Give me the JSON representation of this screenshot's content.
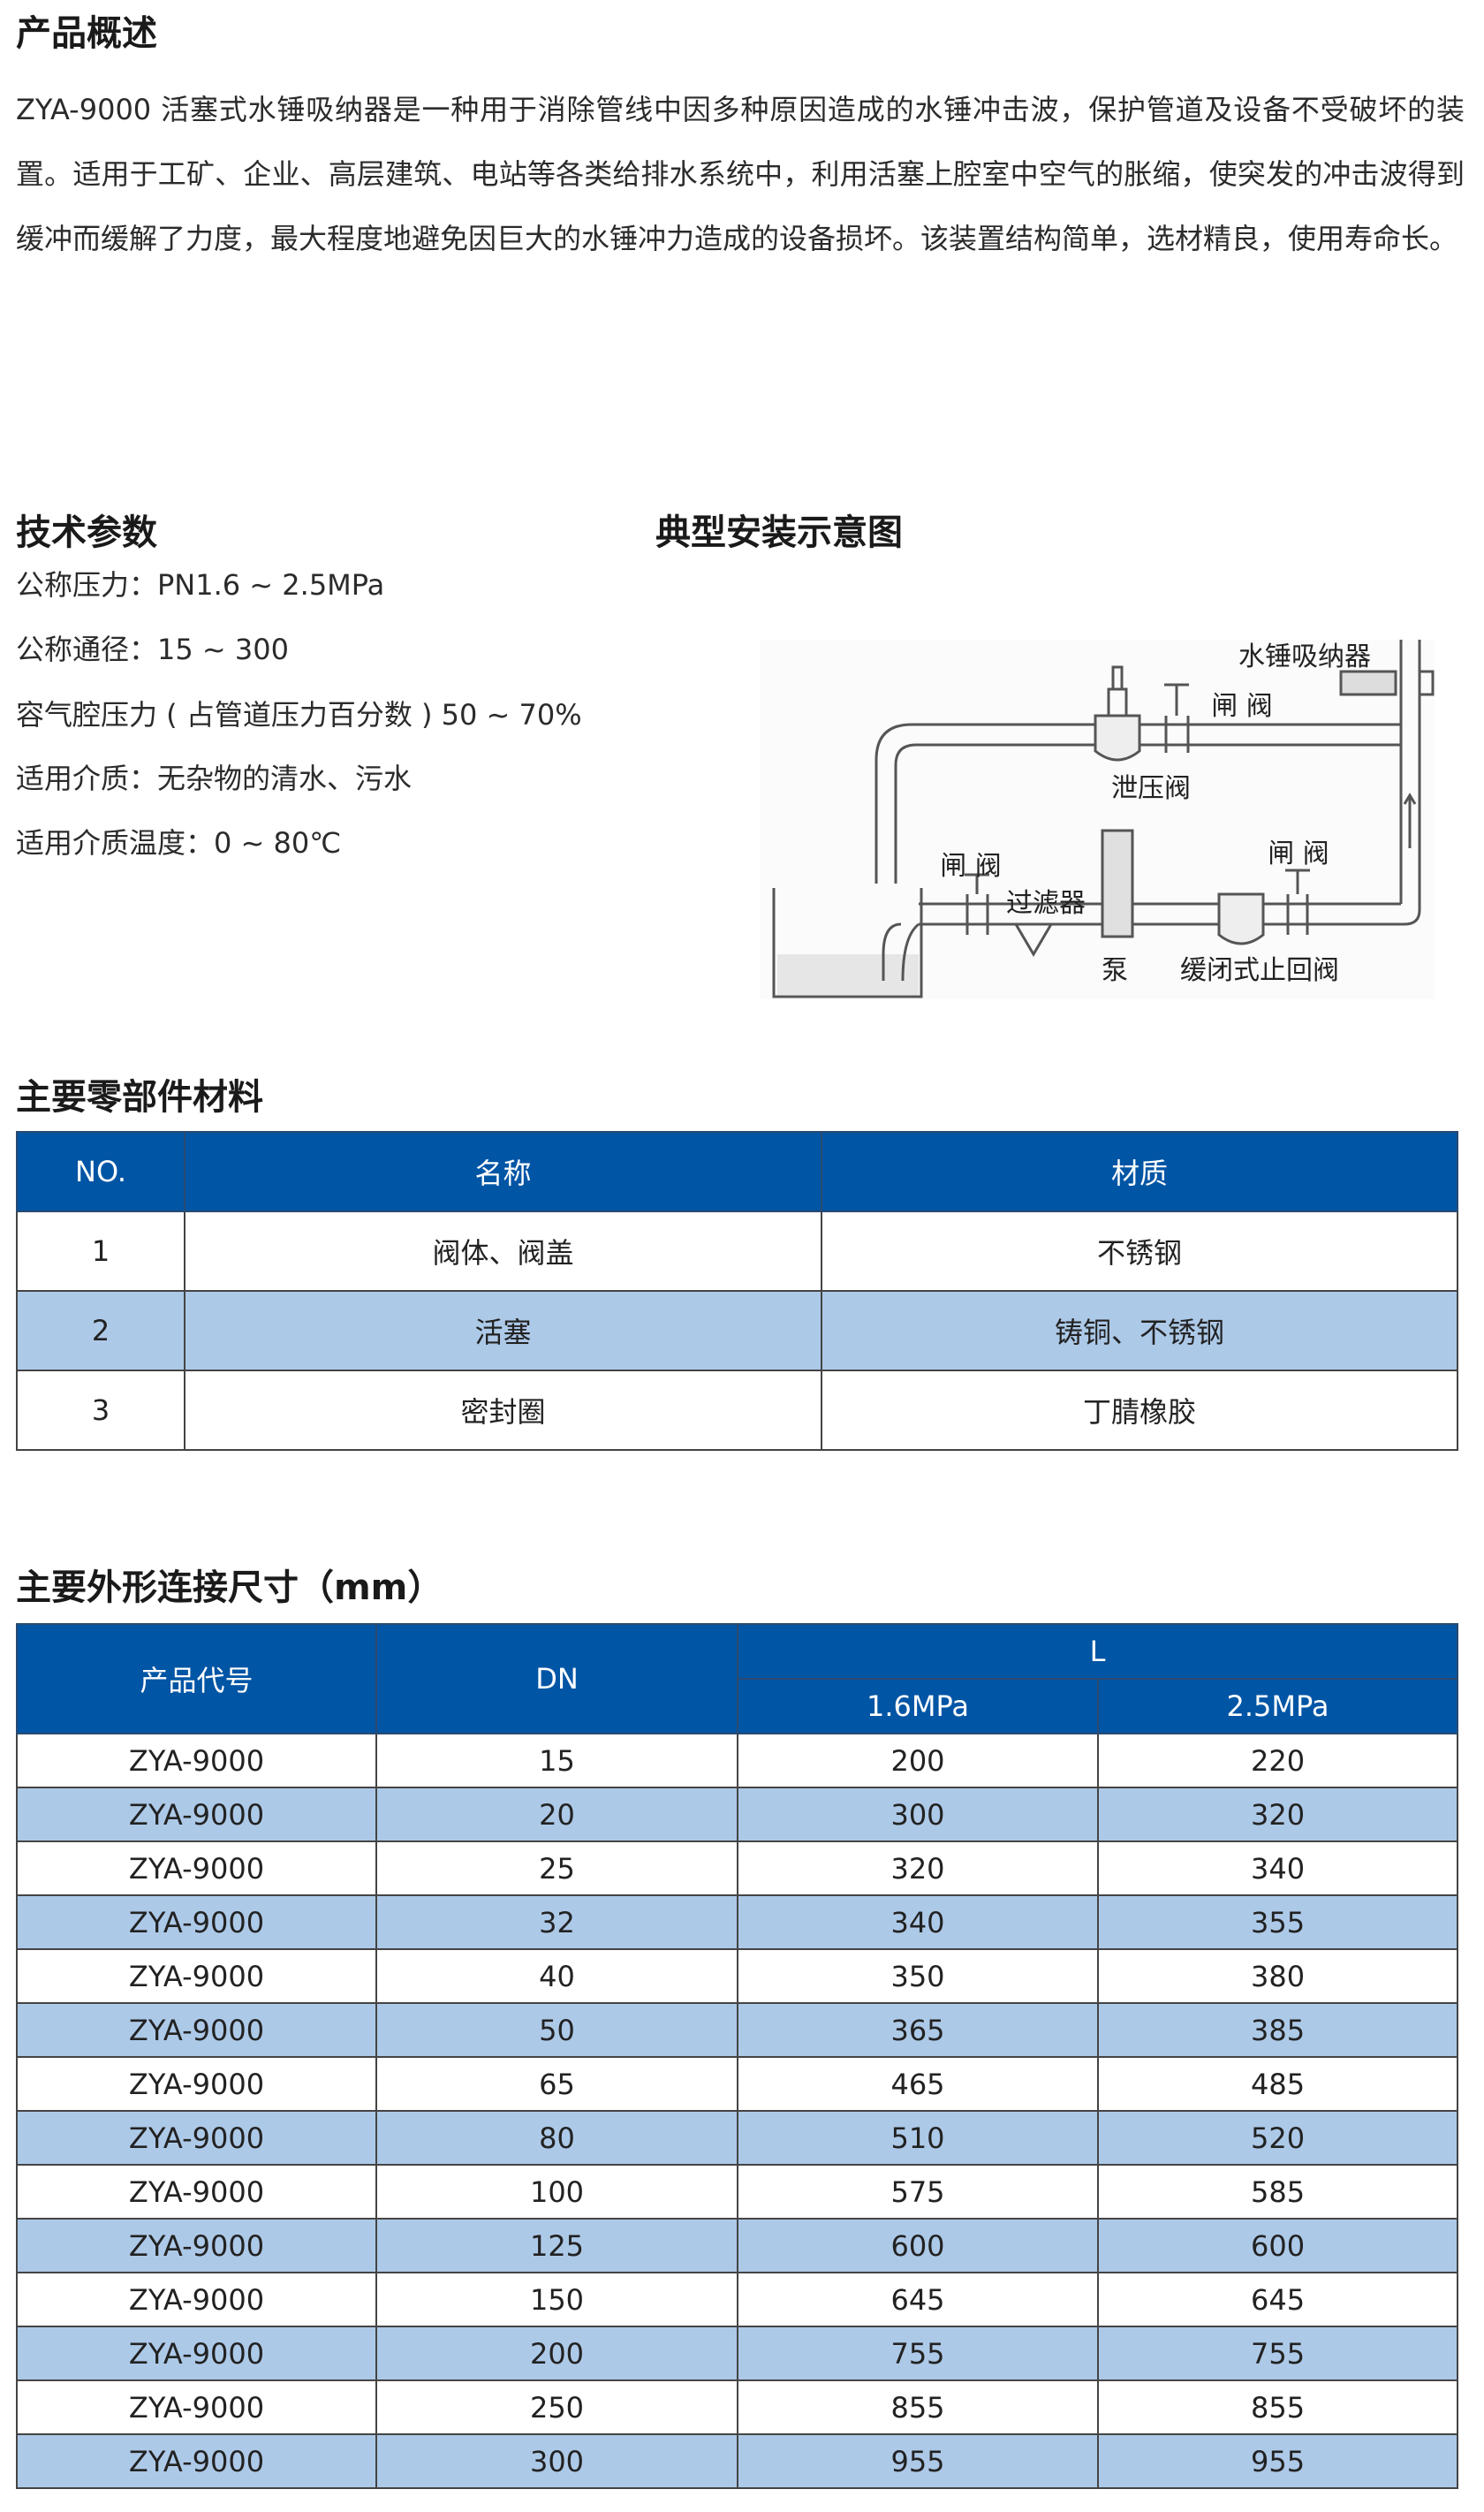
{
  "overview": {
    "title": "产品概述",
    "text": "ZYA-9000 活塞式水锤吸纳器是一种用于消除管线中因多种原因造成的水锤冲击波，保护管道及设备不受破坏的装置。适用于工矿、企业、高层建筑、电站等各类给排水系统中，利用活塞上腔室中空气的胀缩，使突发的冲击波得到缓冲而缓解了力度，最大程度地避免因巨大的水锤冲力造成的设备损坏。该装置结构简单，选材精良，使用寿命长。"
  },
  "specs": {
    "title": "技术参数",
    "items": [
      "公称压力：PN1.6 ~ 2.5MPa",
      "公称通径：15 ~ 300",
      "容气腔压力 ( 占管道压力百分数 ) 50 ~ 70%",
      "适用介质：无杂物的清水、污水",
      "适用介质温度：0 ~ 80℃"
    ]
  },
  "install": {
    "title": "典型安装示意图",
    "labels": {
      "absorber": "水锤吸纳器",
      "gate_top": "闸 阀",
      "relief": "泄压阀",
      "gate_left": "闸 阀",
      "filter": "过滤器",
      "pump": "泵",
      "check": "缓闭式止回阀",
      "gate_right": "闸 阀"
    }
  },
  "parts": {
    "title": "主要零部件材料",
    "headers": [
      "NO.",
      "名称",
      "材质"
    ],
    "rows": [
      [
        "1",
        "阀体、阀盖",
        "不锈钢"
      ],
      [
        "2",
        "活塞",
        "铸铜、不锈钢"
      ],
      [
        "3",
        "密封圈",
        "丁腈橡胶"
      ]
    ]
  },
  "dims": {
    "title": "主要外形连接尺寸（mm）",
    "headers": {
      "code": "产品代号",
      "dn": "DN",
      "l": "L",
      "p1": "1.6MPa",
      "p2": "2.5MPa"
    },
    "rows": [
      [
        "ZYA-9000",
        "15",
        "200",
        "220"
      ],
      [
        "ZYA-9000",
        "20",
        "300",
        "320"
      ],
      [
        "ZYA-9000",
        "25",
        "320",
        "340"
      ],
      [
        "ZYA-9000",
        "32",
        "340",
        "355"
      ],
      [
        "ZYA-9000",
        "40",
        "350",
        "380"
      ],
      [
        "ZYA-9000",
        "50",
        "365",
        "385"
      ],
      [
        "ZYA-9000",
        "65",
        "465",
        "485"
      ],
      [
        "ZYA-9000",
        "80",
        "510",
        "520"
      ],
      [
        "ZYA-9000",
        "100",
        "575",
        "585"
      ],
      [
        "ZYA-9000",
        "125",
        "600",
        "600"
      ],
      [
        "ZYA-9000",
        "150",
        "645",
        "645"
      ],
      [
        "ZYA-9000",
        "200",
        "755",
        "755"
      ],
      [
        "ZYA-9000",
        "250",
        "855",
        "855"
      ],
      [
        "ZYA-9000",
        "300",
        "955",
        "955"
      ]
    ]
  },
  "colors": {
    "header_blue": "#0055a5",
    "stripe_blue": "#adc9e8"
  }
}
